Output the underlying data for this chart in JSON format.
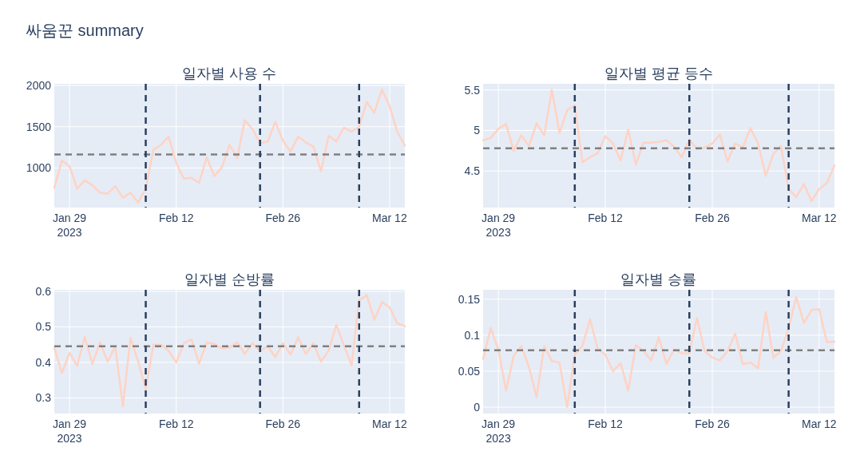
{
  "chart_data": [
    {
      "type": "line",
      "title": "일자별 사용 수",
      "annotations": [
        "싸움꾼 summary"
      ],
      "x": [
        "2023-01-27",
        "2023-01-28",
        "2023-01-29",
        "2023-01-30",
        "2023-01-31",
        "2023-02-01",
        "2023-02-02",
        "2023-02-03",
        "2023-02-04",
        "2023-02-05",
        "2023-02-06",
        "2023-02-07",
        "2023-02-08",
        "2023-02-09",
        "2023-02-10",
        "2023-02-11",
        "2023-02-12",
        "2023-02-13",
        "2023-02-14",
        "2023-02-15",
        "2023-02-16",
        "2023-02-17",
        "2023-02-18",
        "2023-02-19",
        "2023-02-20",
        "2023-02-21",
        "2023-02-22",
        "2023-02-23",
        "2023-02-24",
        "2023-02-25",
        "2023-02-26",
        "2023-02-27",
        "2023-02-28",
        "2023-03-01",
        "2023-03-02",
        "2023-03-03",
        "2023-03-04",
        "2023-03-05",
        "2023-03-06",
        "2023-03-07",
        "2023-03-08",
        "2023-03-09",
        "2023-03-10",
        "2023-03-11",
        "2023-03-12",
        "2023-03-13",
        "2023-03-14"
      ],
      "series": [
        {
          "color": "#ffd3c4",
          "values": [
            760,
            1090,
            1020,
            750,
            850,
            790,
            700,
            690,
            780,
            640,
            700,
            580,
            750,
            1220,
            1280,
            1380,
            1060,
            870,
            880,
            820,
            1130,
            900,
            1010,
            1280,
            1120,
            1580,
            1470,
            1300,
            1320,
            1560,
            1330,
            1200,
            1380,
            1310,
            1260,
            960,
            1390,
            1320,
            1490,
            1440,
            1500,
            1800,
            1670,
            1950,
            1750,
            1440,
            1270
          ]
        }
      ],
      "xlim": [
        "2023-01-27",
        "2023-03-14"
      ],
      "xticks": [
        {
          "value": "2023-01-29",
          "label": "Jan 29\n2023"
        },
        {
          "value": "2023-02-12",
          "label": "Feb 12"
        },
        {
          "value": "2023-02-26",
          "label": "Feb 26"
        },
        {
          "value": "2023-03-12",
          "label": "Mar 12"
        }
      ],
      "ylim": [
        520,
        2020
      ],
      "yticks": [
        1000,
        1500,
        2000
      ],
      "grid": true,
      "ref_lines": [
        {
          "axis": "y",
          "value": 1163,
          "color": "#808080",
          "line_style": "dashed"
        },
        {
          "axis": "x",
          "value": "2023-02-08",
          "color": "#2a3f5f",
          "line_style": "dashed"
        },
        {
          "axis": "x",
          "value": "2023-02-23",
          "color": "#2a3f5f",
          "line_style": "dashed"
        },
        {
          "axis": "x",
          "value": "2023-03-08",
          "color": "#2a3f5f",
          "line_style": "dashed"
        }
      ]
    },
    {
      "type": "line",
      "title": "일자별 평균 등수",
      "x": [
        "2023-01-27",
        "2023-01-28",
        "2023-01-29",
        "2023-01-30",
        "2023-01-31",
        "2023-02-01",
        "2023-02-02",
        "2023-02-03",
        "2023-02-04",
        "2023-02-05",
        "2023-02-06",
        "2023-02-07",
        "2023-02-08",
        "2023-02-09",
        "2023-02-10",
        "2023-02-11",
        "2023-02-12",
        "2023-02-13",
        "2023-02-14",
        "2023-02-15",
        "2023-02-16",
        "2023-02-17",
        "2023-02-18",
        "2023-02-19",
        "2023-02-20",
        "2023-02-21",
        "2023-02-22",
        "2023-02-23",
        "2023-02-24",
        "2023-02-25",
        "2023-02-26",
        "2023-02-27",
        "2023-02-28",
        "2023-03-01",
        "2023-03-02",
        "2023-03-03",
        "2023-03-04",
        "2023-03-05",
        "2023-03-06",
        "2023-03-07",
        "2023-03-08",
        "2023-03-09",
        "2023-03-10",
        "2023-03-11",
        "2023-03-12",
        "2023-03-13",
        "2023-03-14"
      ],
      "series": [
        {
          "color": "#ffd3c4",
          "values": [
            4.88,
            4.91,
            5.02,
            5.08,
            4.75,
            4.94,
            4.81,
            5.09,
            4.94,
            5.5,
            4.97,
            5.25,
            5.31,
            4.61,
            4.67,
            4.72,
            4.93,
            4.84,
            4.63,
            5.01,
            4.58,
            4.85,
            4.85,
            4.86,
            4.88,
            4.8,
            4.67,
            4.89,
            4.77,
            4.79,
            4.84,
            4.95,
            4.62,
            4.84,
            4.79,
            5.03,
            4.84,
            4.44,
            4.71,
            4.81,
            4.28,
            4.18,
            4.34,
            4.13,
            4.28,
            4.35,
            4.57
          ]
        }
      ],
      "xlim": [
        "2023-01-27",
        "2023-03-14"
      ],
      "xticks": [
        {
          "value": "2023-01-29",
          "label": "Jan 29\n2023"
        },
        {
          "value": "2023-02-12",
          "label": "Feb 12"
        },
        {
          "value": "2023-02-26",
          "label": "Feb 26"
        },
        {
          "value": "2023-03-12",
          "label": "Mar 12"
        }
      ],
      "ylim": [
        4.05,
        5.575
      ],
      "yticks": [
        4.5,
        5,
        5.5
      ],
      "grid": true,
      "ref_lines": [
        {
          "axis": "y",
          "value": 4.78,
          "color": "#808080",
          "line_style": "dashed"
        },
        {
          "axis": "x",
          "value": "2023-02-08",
          "color": "#2a3f5f",
          "line_style": "dashed"
        },
        {
          "axis": "x",
          "value": "2023-02-23",
          "color": "#2a3f5f",
          "line_style": "dashed"
        },
        {
          "axis": "x",
          "value": "2023-03-08",
          "color": "#2a3f5f",
          "line_style": "dashed"
        }
      ]
    },
    {
      "type": "line",
      "title": "일자별 순방률",
      "x": [
        "2023-01-27",
        "2023-01-28",
        "2023-01-29",
        "2023-01-30",
        "2023-01-31",
        "2023-02-01",
        "2023-02-02",
        "2023-02-03",
        "2023-02-04",
        "2023-02-05",
        "2023-02-06",
        "2023-02-07",
        "2023-02-08",
        "2023-02-09",
        "2023-02-10",
        "2023-02-11",
        "2023-02-12",
        "2023-02-13",
        "2023-02-14",
        "2023-02-15",
        "2023-02-16",
        "2023-02-17",
        "2023-02-18",
        "2023-02-19",
        "2023-02-20",
        "2023-02-21",
        "2023-02-22",
        "2023-02-23",
        "2023-02-24",
        "2023-02-25",
        "2023-02-26",
        "2023-02-27",
        "2023-02-28",
        "2023-03-01",
        "2023-03-02",
        "2023-03-03",
        "2023-03-04",
        "2023-03-05",
        "2023-03-06",
        "2023-03-07",
        "2023-03-08",
        "2023-03-09",
        "2023-03-10",
        "2023-03-11",
        "2023-03-12",
        "2023-03-13",
        "2023-03-14"
      ],
      "series": [
        {
          "color": "#ffd3c4",
          "values": [
            0.442,
            0.37,
            0.427,
            0.39,
            0.472,
            0.396,
            0.456,
            0.402,
            0.445,
            0.276,
            0.469,
            0.403,
            0.325,
            0.45,
            0.45,
            0.433,
            0.4,
            0.454,
            0.465,
            0.397,
            0.456,
            0.452,
            0.439,
            0.442,
            0.457,
            0.424,
            0.454,
            0.432,
            0.445,
            0.415,
            0.454,
            0.422,
            0.471,
            0.424,
            0.454,
            0.402,
            0.433,
            0.506,
            0.448,
            0.392,
            0.575,
            0.589,
            0.52,
            0.57,
            0.555,
            0.51,
            0.502
          ]
        }
      ],
      "xlim": [
        "2023-01-27",
        "2023-03-14"
      ],
      "xticks": [
        {
          "value": "2023-01-29",
          "label": "Jan 29\n2023"
        },
        {
          "value": "2023-02-12",
          "label": "Feb 12"
        },
        {
          "value": "2023-02-26",
          "label": "Feb 26"
        },
        {
          "value": "2023-03-12",
          "label": "Mar 12"
        }
      ],
      "ylim": [
        0.256,
        0.6045
      ],
      "yticks": [
        0.3,
        0.4,
        0.5,
        0.6
      ],
      "grid": true,
      "ref_lines": [
        {
          "axis": "y",
          "value": 0.4455,
          "color": "#808080",
          "line_style": "dashed"
        },
        {
          "axis": "x",
          "value": "2023-02-08",
          "color": "#2a3f5f",
          "line_style": "dashed"
        },
        {
          "axis": "x",
          "value": "2023-02-23",
          "color": "#2a3f5f",
          "line_style": "dashed"
        },
        {
          "axis": "x",
          "value": "2023-03-08",
          "color": "#2a3f5f",
          "line_style": "dashed"
        }
      ]
    },
    {
      "type": "line",
      "title": "일자별 승률",
      "x": [
        "2023-01-27",
        "2023-01-28",
        "2023-01-29",
        "2023-01-30",
        "2023-01-31",
        "2023-02-01",
        "2023-02-02",
        "2023-02-03",
        "2023-02-04",
        "2023-02-05",
        "2023-02-06",
        "2023-02-07",
        "2023-02-08",
        "2023-02-09",
        "2023-02-10",
        "2023-02-11",
        "2023-02-12",
        "2023-02-13",
        "2023-02-14",
        "2023-02-15",
        "2023-02-16",
        "2023-02-17",
        "2023-02-18",
        "2023-02-19",
        "2023-02-20",
        "2023-02-21",
        "2023-02-22",
        "2023-02-23",
        "2023-02-24",
        "2023-02-25",
        "2023-02-26",
        "2023-02-27",
        "2023-02-28",
        "2023-03-01",
        "2023-03-02",
        "2023-03-03",
        "2023-03-04",
        "2023-03-05",
        "2023-03-06",
        "2023-03-07",
        "2023-03-08",
        "2023-03-09",
        "2023-03-10",
        "2023-03-11",
        "2023-03-12",
        "2023-03-13",
        "2023-03-14"
      ],
      "series": [
        {
          "color": "#ffd3c4",
          "values": [
            0.067,
            0.11,
            0.08,
            0.023,
            0.071,
            0.085,
            0.056,
            0.014,
            0.085,
            0.064,
            0.062,
            0.0,
            0.073,
            0.085,
            0.122,
            0.081,
            0.073,
            0.05,
            0.061,
            0.023,
            0.086,
            0.078,
            0.065,
            0.097,
            0.06,
            0.08,
            0.075,
            0.075,
            0.124,
            0.078,
            0.069,
            0.065,
            0.078,
            0.102,
            0.06,
            0.062,
            0.054,
            0.132,
            0.069,
            0.078,
            0.11,
            0.153,
            0.117,
            0.135,
            0.136,
            0.09,
            0.091
          ]
        }
      ],
      "xlim": [
        "2023-01-27",
        "2023-03-14"
      ],
      "xticks": [
        {
          "value": "2023-01-29",
          "label": "Jan 29\n2023"
        },
        {
          "value": "2023-02-12",
          "label": "Feb 12"
        },
        {
          "value": "2023-02-26",
          "label": "Feb 26"
        },
        {
          "value": "2023-03-12",
          "label": "Mar 12"
        }
      ],
      "ylim": [
        -0.0088,
        0.163
      ],
      "yticks": [
        0,
        0.05,
        0.1,
        0.15
      ],
      "grid": true,
      "ref_lines": [
        {
          "axis": "y",
          "value": 0.079,
          "color": "#808080",
          "line_style": "dashed"
        },
        {
          "axis": "x",
          "value": "2023-02-08",
          "color": "#2a3f5f",
          "line_style": "dashed"
        },
        {
          "axis": "x",
          "value": "2023-02-23",
          "color": "#2a3f5f",
          "line_style": "dashed"
        },
        {
          "axis": "x",
          "value": "2023-03-08",
          "color": "#2a3f5f",
          "line_style": "dashed"
        }
      ]
    }
  ]
}
